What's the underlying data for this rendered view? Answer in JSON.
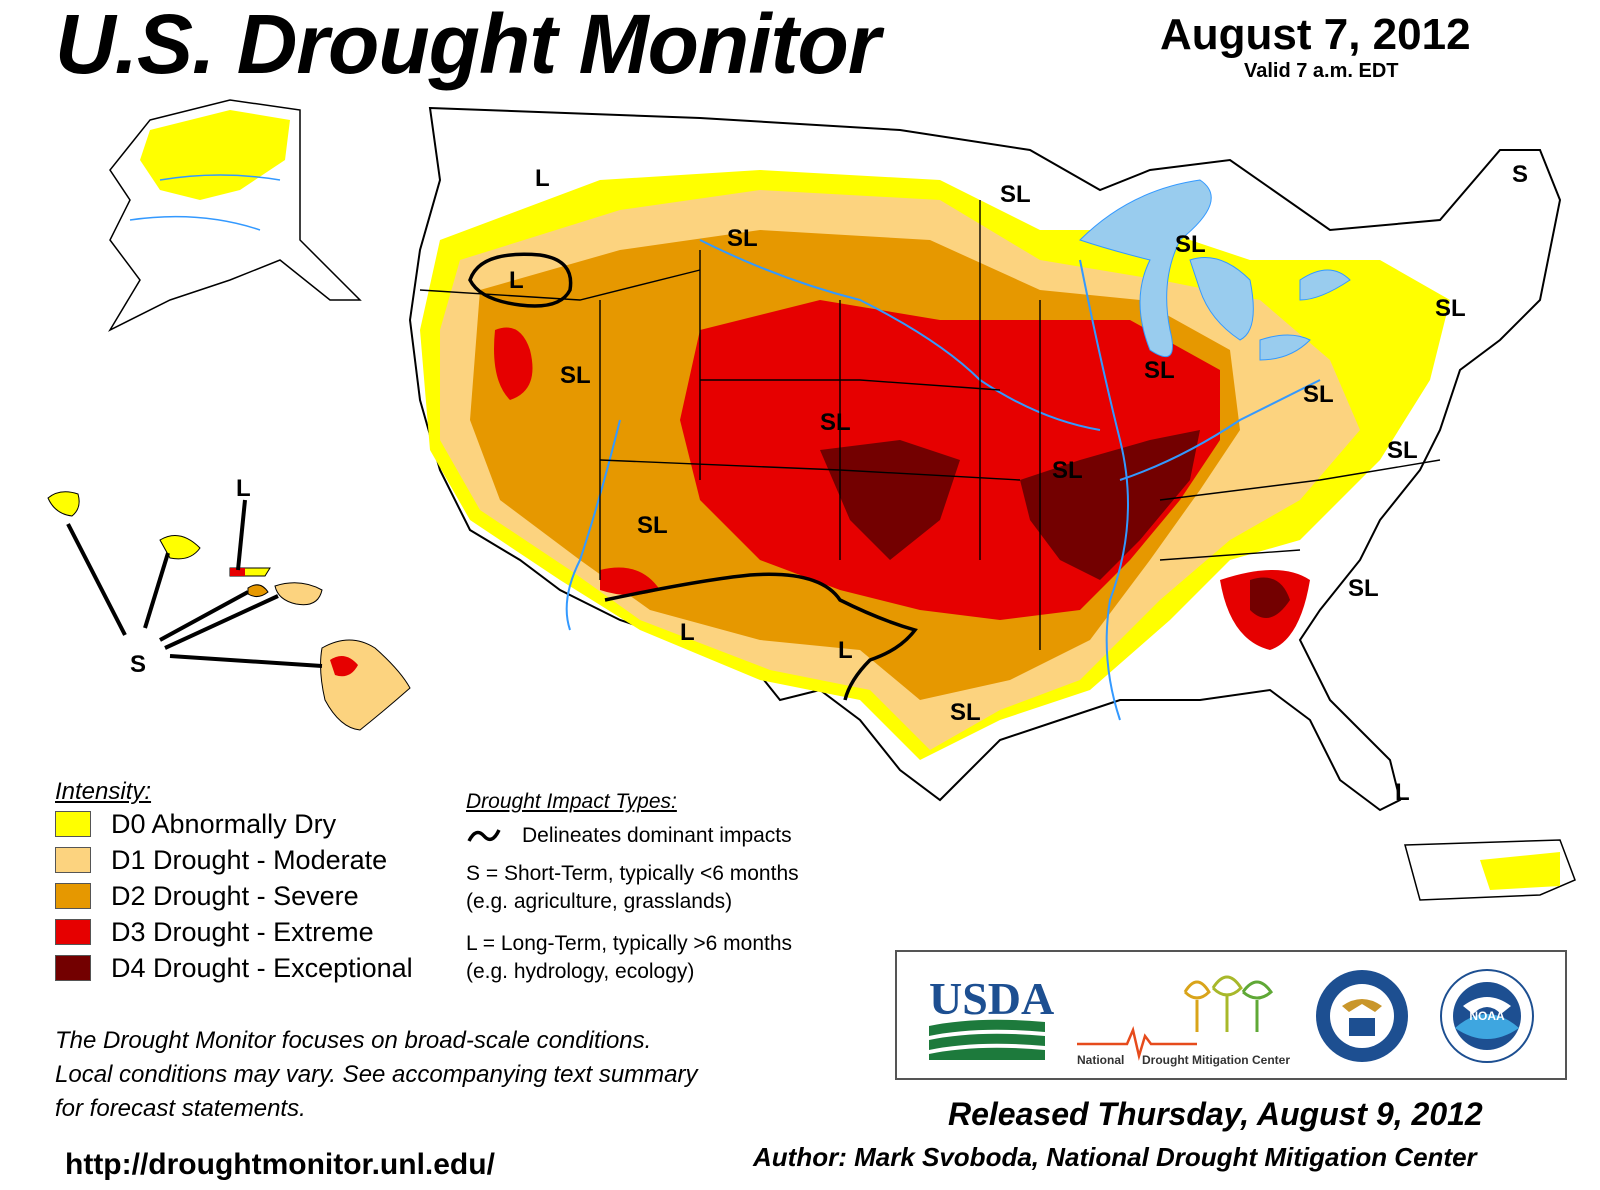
{
  "header": {
    "title": "U.S. Drought Monitor",
    "date": "August 7, 2012",
    "valid": "Valid 7 a.m. EDT"
  },
  "legend": {
    "title": "Intensity:",
    "items": [
      {
        "label": "D0 Abnormally Dry",
        "color": "#ffff00"
      },
      {
        "label": "D1 Drought - Moderate",
        "color": "#fcd37f"
      },
      {
        "label": "D2 Drought - Severe",
        "color": "#e69800"
      },
      {
        "label": "D3 Drought - Extreme",
        "color": "#e60000"
      },
      {
        "label": "D4 Drought - Exceptional",
        "color": "#730000"
      }
    ]
  },
  "impacts": {
    "title": "Drought Impact Types:",
    "delineates": "Delineates dominant impacts",
    "short_term_line1": "S = Short-Term, typically <6 months",
    "short_term_line2": "(e.g. agriculture, grasslands)",
    "long_term_line1": "L = Long-Term, typically >6 months",
    "long_term_line2": "(e.g. hydrology, ecology)"
  },
  "disclaimer": {
    "line1": "The Drought Monitor focuses on broad-scale conditions.",
    "line2": "Local conditions may vary. See accompanying text summary",
    "line3": "for forecast statements."
  },
  "footer": {
    "url": "http://droughtmonitor.unl.edu/",
    "released": "Released Thursday, August 9, 2012",
    "author": "Author: Mark Svoboda, National Drought Mitigation Center"
  },
  "logos": {
    "usda": "USDA",
    "ndmc_part1": "National",
    "ndmc_part2": "Drought Mitigation Center",
    "noaa": "NOAA"
  },
  "map_labels": {
    "sl": "SL",
    "s": "S",
    "l": "L"
  },
  "colors": {
    "water": "#99ccee",
    "rivers": "#3399ff",
    "state_lines": "#000000",
    "county_lines": "#999999"
  }
}
